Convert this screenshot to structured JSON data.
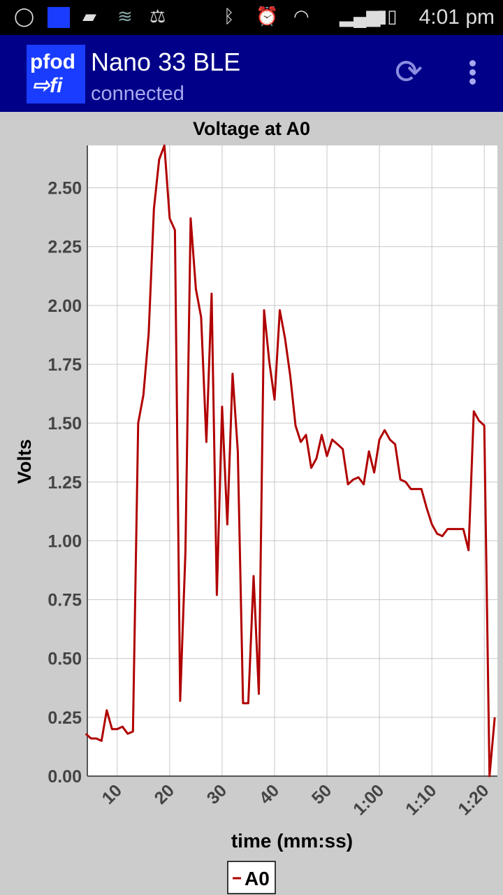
{
  "status_bar": {
    "time": "4:01 pm",
    "icons": [
      "chat-bubble-icon",
      "pfod-notification-icon",
      "image-icon",
      "wifi-signal-icon",
      "scale-icon",
      "bluetooth-icon",
      "alarm-icon",
      "wifi-icon",
      "cell-signal-icon",
      "battery-icon"
    ]
  },
  "app_bar": {
    "logo_line1": "pfod",
    "logo_line2": "⇨fi",
    "title": "Nano 33 BLE",
    "subtitle": "connected",
    "refresh_icon": "refresh-icon",
    "menu_icon": "overflow-menu-icon",
    "color": "#000088"
  },
  "chart_data": {
    "type": "line",
    "title": "Voltage at A0",
    "xlabel": "time (mm:ss)",
    "ylabel": "Volts",
    "xlim": [
      4.3,
      82.5
    ],
    "ylim": [
      0,
      2.68
    ],
    "yticks": [
      0,
      0.25,
      0.5,
      0.75,
      1,
      1.25,
      1.5,
      1.75,
      2,
      2.25,
      2.5
    ],
    "ytick_labels": [
      "0.00",
      "0.25",
      "0.50",
      "0.75",
      "1.00",
      "1.25",
      "1.50",
      "1.75",
      "2.00",
      "2.25",
      "2.50"
    ],
    "xticks": [
      10,
      20,
      30,
      40,
      50,
      60,
      70,
      80
    ],
    "xtick_labels": [
      "10",
      "20",
      "30",
      "40",
      "50",
      "1:00",
      "1:10",
      "1:20"
    ],
    "grid": true,
    "legend_placement": "bottom-center",
    "series": [
      {
        "name": "A0",
        "color": "#b00000",
        "x": [
          4,
          5,
          6,
          7,
          8,
          9,
          10,
          11,
          12,
          13,
          14,
          15,
          16,
          17,
          18,
          19,
          20,
          21,
          22,
          23,
          24,
          25,
          26,
          27,
          28,
          29,
          30,
          31,
          32,
          33,
          34,
          35,
          36,
          37,
          38,
          39,
          40,
          41,
          42,
          43,
          44,
          45,
          46,
          47,
          48,
          49,
          50,
          51,
          52,
          53,
          54,
          55,
          56,
          57,
          58,
          59,
          60,
          61,
          62,
          63,
          64,
          65,
          66,
          67,
          68,
          69,
          70,
          71,
          72,
          73,
          74,
          75,
          76,
          77,
          78,
          79,
          80,
          81,
          82
        ],
        "values": [
          0.18,
          0.16,
          0.16,
          0.15,
          0.28,
          0.2,
          0.2,
          0.21,
          0.18,
          0.19,
          1.5,
          1.62,
          1.88,
          2.41,
          2.62,
          2.68,
          2.37,
          2.32,
          0.32,
          0.95,
          2.37,
          2.07,
          1.95,
          1.42,
          2.05,
          0.77,
          1.57,
          1.07,
          1.71,
          1.38,
          0.31,
          0.31,
          0.85,
          0.35,
          1.98,
          1.76,
          1.6,
          1.98,
          1.86,
          1.7,
          1.49,
          1.42,
          1.45,
          1.31,
          1.35,
          1.45,
          1.36,
          1.43,
          1.41,
          1.39,
          1.24,
          1.26,
          1.27,
          1.24,
          1.38,
          1.29,
          1.43,
          1.47,
          1.43,
          1.41,
          1.26,
          1.25,
          1.22,
          1.22,
          1.22,
          1.14,
          1.07,
          1.03,
          1.02,
          1.05,
          1.05,
          1.05,
          1.05,
          0.96,
          1.55,
          1.51,
          1.49,
          0.0,
          0.25
        ]
      }
    ]
  }
}
